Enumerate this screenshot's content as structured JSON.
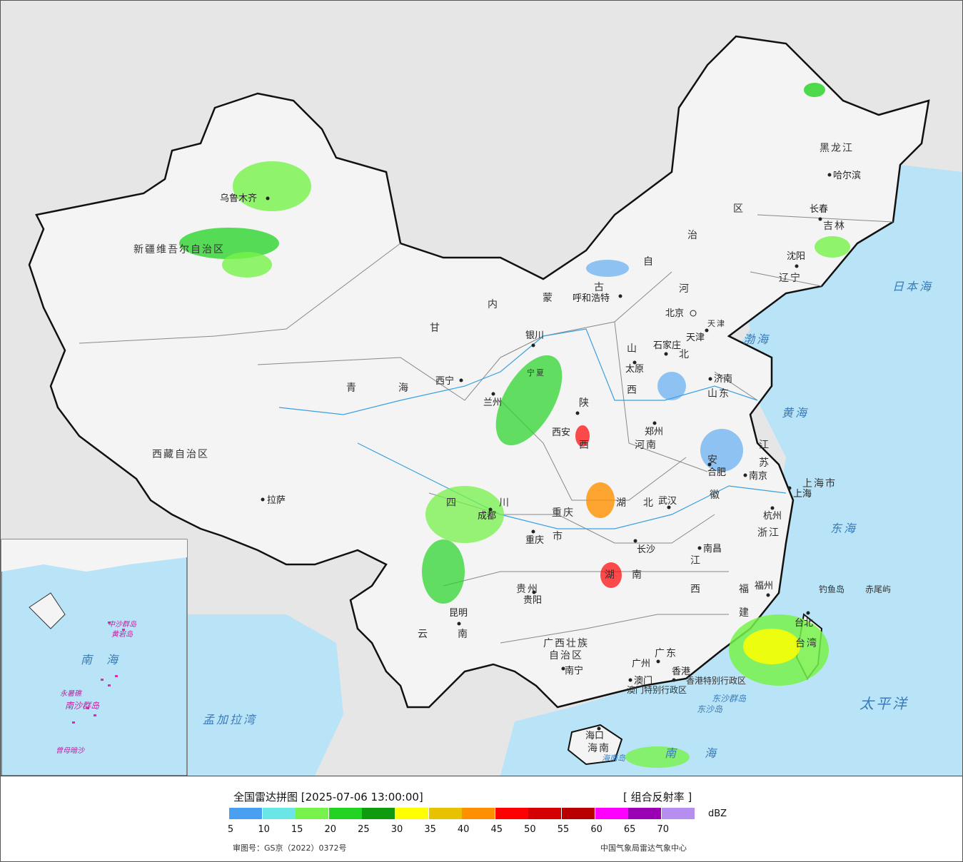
{
  "map": {
    "provinces": [
      {
        "text": "新疆维吾尔自治区"
      },
      {
        "text": "西藏自治区"
      },
      {
        "text": "青"
      },
      {
        "text": "海"
      },
      {
        "text": "甘"
      },
      {
        "text": "内"
      },
      {
        "text": "蒙"
      },
      {
        "text": "古"
      },
      {
        "text": "自"
      },
      {
        "text": "治"
      },
      {
        "text": "区"
      },
      {
        "text": "黑龙江"
      },
      {
        "text": "吉林"
      },
      {
        "text": "辽宁"
      },
      {
        "text": "河"
      },
      {
        "text": "北"
      },
      {
        "text": "山"
      },
      {
        "text": "西"
      },
      {
        "text": "山东"
      },
      {
        "text": "陕"
      },
      {
        "text": "西"
      },
      {
        "text": "河南"
      },
      {
        "text": "江"
      },
      {
        "text": "苏"
      },
      {
        "text": "安"
      },
      {
        "text": "徽"
      },
      {
        "text": "上海市"
      },
      {
        "text": "浙江"
      },
      {
        "text": "湖"
      },
      {
        "text": "北"
      },
      {
        "text": "四"
      },
      {
        "text": "川"
      },
      {
        "text": "重庆"
      },
      {
        "text": "市"
      },
      {
        "text": "贵州"
      },
      {
        "text": "湖"
      },
      {
        "text": "南"
      },
      {
        "text": "江"
      },
      {
        "text": "西"
      },
      {
        "text": "福"
      },
      {
        "text": "建"
      },
      {
        "text": "云"
      },
      {
        "text": "南"
      },
      {
        "text": "广西壮族"
      },
      {
        "text": "自治区"
      },
      {
        "text": "广东"
      },
      {
        "text": "台湾"
      },
      {
        "text": "海南"
      },
      {
        "text": "宁夏"
      },
      {
        "text": "天津"
      },
      {
        "text": "香港特别行政区"
      },
      {
        "text": "澳门特别行政区"
      }
    ],
    "cities": [
      {
        "text": "乌鲁木齐"
      },
      {
        "text": "拉萨"
      },
      {
        "text": "西宁"
      },
      {
        "text": "兰州"
      },
      {
        "text": "银川"
      },
      {
        "text": "呼和浩特"
      },
      {
        "text": "北京"
      },
      {
        "text": "天津"
      },
      {
        "text": "石家庄"
      },
      {
        "text": "太原"
      },
      {
        "text": "济南"
      },
      {
        "text": "郑州"
      },
      {
        "text": "西安"
      },
      {
        "text": "成都"
      },
      {
        "text": "重庆"
      },
      {
        "text": "武汉"
      },
      {
        "text": "合肥"
      },
      {
        "text": "南京"
      },
      {
        "text": "上海"
      },
      {
        "text": "杭州"
      },
      {
        "text": "南昌"
      },
      {
        "text": "长沙"
      },
      {
        "text": "贵阳"
      },
      {
        "text": "昆明"
      },
      {
        "text": "南宁"
      },
      {
        "text": "广州"
      },
      {
        "text": "澳门"
      },
      {
        "text": "香港"
      },
      {
        "text": "福州"
      },
      {
        "text": "台北"
      },
      {
        "text": "海口"
      },
      {
        "text": "哈尔滨"
      },
      {
        "text": "长春"
      },
      {
        "text": "沈阳"
      }
    ],
    "seas": [
      {
        "text": "日本海"
      },
      {
        "text": "渤海"
      },
      {
        "text": "黄海"
      },
      {
        "text": "东海"
      },
      {
        "text": "太平洋"
      },
      {
        "text": "南海"
      },
      {
        "text": "孟加拉湾"
      },
      {
        "text": "海南岛"
      },
      {
        "text": "钓鱼岛"
      },
      {
        "text": "赤尾屿"
      },
      {
        "text": "东沙群岛"
      },
      {
        "text": "东沙岛"
      }
    ],
    "inset_labels": [
      {
        "text": "南海"
      },
      {
        "text": "中沙群岛"
      },
      {
        "text": "黄岩岛"
      },
      {
        "text": "南沙群岛"
      },
      {
        "text": "永暑礁"
      },
      {
        "text": "曾母暗沙"
      }
    ]
  },
  "legend": {
    "title": "全国雷达拼图 [2025-07-06 13:00:00]",
    "product": "[ 组合反射率 ]",
    "unit": "dBZ",
    "colors": [
      "#4aa0f0",
      "#6be6e6",
      "#77f24a",
      "#22d322",
      "#0f9a0f",
      "#ffff00",
      "#e6c200",
      "#ff9000",
      "#ff0000",
      "#d40000",
      "#b80000",
      "#ff00ff",
      "#9a00b4",
      "#b58ef0"
    ],
    "ticks": [
      "5",
      "10",
      "15",
      "20",
      "25",
      "30",
      "35",
      "40",
      "45",
      "50",
      "55",
      "60",
      "65",
      "70"
    ],
    "map_review": "审图号：GS京（2022）0372号",
    "source": "中国气象局雷达气象中心"
  }
}
